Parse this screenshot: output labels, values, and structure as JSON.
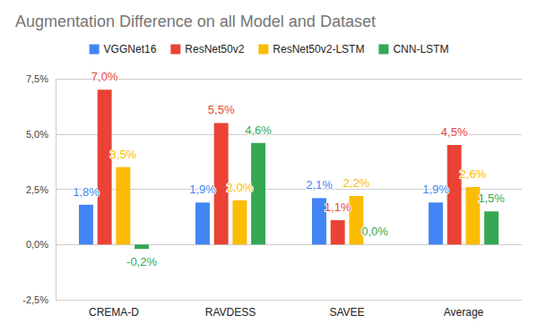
{
  "chart_data": {
    "type": "bar",
    "title": "Augmentation Difference on all Model and Dataset",
    "categories": [
      "CREMA-D",
      "RAVDESS",
      "SAVEE",
      "Average"
    ],
    "series": [
      {
        "name": "VGGNet16",
        "color": "#4285f4",
        "values": [
          1.8,
          1.9,
          2.1,
          1.9
        ],
        "value_labels": [
          "1,8%",
          "1,9%",
          "2,1%",
          "1,9%"
        ]
      },
      {
        "name": "ResNet50v2",
        "color": "#ea4335",
        "values": [
          7.0,
          5.5,
          1.1,
          4.5
        ],
        "value_labels": [
          "7,0%",
          "5,5%",
          "1,1%",
          "4,5%"
        ]
      },
      {
        "name": "ResNet50v2-LSTM",
        "color": "#fbbc04",
        "values": [
          3.5,
          2.0,
          2.2,
          2.6
        ],
        "value_labels": [
          "3,5%",
          "2,0%",
          "2,2%",
          "2,6%"
        ]
      },
      {
        "name": "CNN-LSTM",
        "color": "#34a853",
        "values": [
          -0.2,
          4.6,
          0.0,
          1.5
        ],
        "value_labels": [
          "-0,2%",
          "4,6%",
          "0,0%",
          "1,5%"
        ]
      }
    ],
    "ylim": [
      -2.5,
      7.5
    ],
    "yticks": [
      {
        "value": -2.5,
        "label": "-2,5%"
      },
      {
        "value": 0,
        "label": "0,0%"
      },
      {
        "value": 2.5,
        "label": "2,5%"
      },
      {
        "value": 5,
        "label": "5,0%"
      },
      {
        "value": 7.5,
        "label": "7,5%"
      }
    ],
    "grid": true,
    "legend": "top",
    "data_labels": true
  }
}
